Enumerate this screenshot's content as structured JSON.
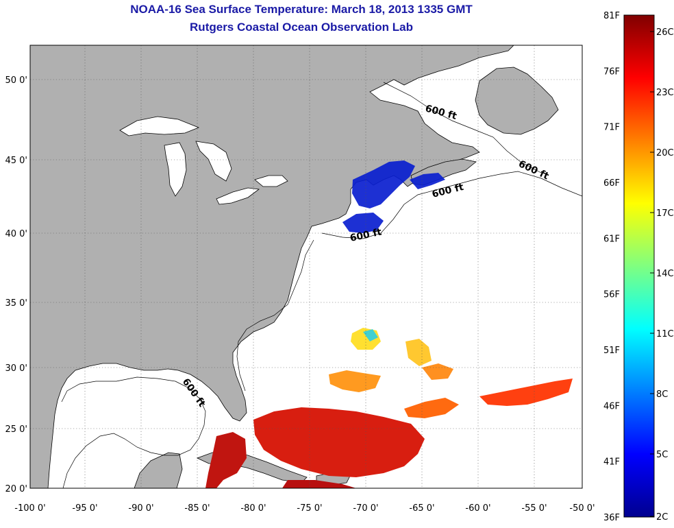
{
  "title": {
    "line1": "NOAA-16 Sea Surface Temperature:  March 18, 2013 1335 GMT",
    "line2": "Rutgers Coastal Ocean Observation Lab"
  },
  "map": {
    "lon_labels": [
      "-100 0'",
      "-95 0'",
      "-90 0'",
      "-85 0'",
      "-80 0'",
      "-75 0'",
      "-70 0'",
      "-65 0'",
      "-60 0'",
      "-55 0'",
      "-50 0'"
    ],
    "lat_labels": [
      "50 0'",
      "45 0'",
      "40 0'",
      "35 0'",
      "30 0'",
      "25 0'",
      "20 0'"
    ],
    "contour_labels": [
      "600 ft",
      "600 ft",
      "600 ft",
      "600 ft",
      "600 ft"
    ],
    "colors": {
      "land": "#b0b0b0",
      "ocean": "#ffffff",
      "outline": "#000000"
    }
  },
  "colorbar": {
    "f_labels": [
      "81F",
      "76F",
      "71F",
      "66F",
      "61F",
      "56F",
      "51F",
      "46F",
      "41F",
      "36F"
    ],
    "c_labels": [
      "26C",
      "23C",
      "20C",
      "17C",
      "14C",
      "11C",
      "8C",
      "5C",
      "2C"
    ]
  }
}
